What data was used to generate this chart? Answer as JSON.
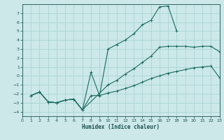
{
  "xlabel": "Humidex (Indice chaleur)",
  "background_color": "#cce8e8",
  "grid_color": "#aad4d4",
  "line_color": "#1a6b60",
  "xlim": [
    0,
    23
  ],
  "ylim": [
    -4.5,
    8.0
  ],
  "xticks": [
    0,
    1,
    2,
    3,
    4,
    5,
    6,
    7,
    8,
    9,
    10,
    11,
    12,
    13,
    14,
    15,
    16,
    17,
    18,
    19,
    20,
    21,
    22,
    23
  ],
  "yticks": [
    -4,
    -3,
    -2,
    -1,
    0,
    1,
    2,
    3,
    4,
    5,
    6,
    7
  ],
  "line_top_x": [
    1,
    2,
    3,
    4,
    5,
    6,
    7,
    8,
    9,
    10,
    11,
    12,
    13,
    14,
    15,
    16,
    17,
    18
  ],
  "line_top_y": [
    -2.2,
    -1.8,
    -2.9,
    -3.0,
    -2.7,
    -2.6,
    -3.8,
    0.4,
    -2.2,
    3.0,
    3.5,
    4.0,
    4.7,
    5.7,
    6.2,
    7.7,
    7.8,
    5.0
  ],
  "line_mid_x": [
    1,
    2,
    3,
    4,
    5,
    6,
    7,
    10,
    11,
    12,
    13,
    14,
    15,
    16,
    17,
    18,
    19,
    20,
    21,
    22,
    23
  ],
  "line_mid_y": [
    -2.2,
    -1.8,
    -2.9,
    -3.0,
    -2.7,
    -2.6,
    -3.8,
    -1.0,
    -0.5,
    0.2,
    0.8,
    1.5,
    2.2,
    3.2,
    3.3,
    3.3,
    3.3,
    3.2,
    3.3,
    3.3,
    2.7
  ],
  "line_bot_x": [
    1,
    2,
    3,
    4,
    5,
    6,
    7,
    8,
    9,
    10,
    11,
    12,
    13,
    14,
    15,
    16,
    17,
    18,
    19,
    20,
    21,
    22,
    23
  ],
  "line_bot_y": [
    -2.2,
    -1.8,
    -2.9,
    -3.0,
    -2.7,
    -2.6,
    -3.8,
    -2.2,
    -2.2,
    -1.9,
    -1.7,
    -1.4,
    -1.1,
    -0.7,
    -0.3,
    0.0,
    0.3,
    0.5,
    0.7,
    0.9,
    1.0,
    1.1,
    -0.2
  ]
}
